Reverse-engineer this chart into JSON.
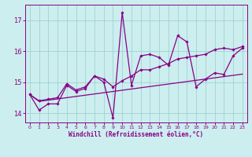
{
  "xlabel": "Windchill (Refroidissement éolien,°C)",
  "x_values": [
    0,
    1,
    2,
    3,
    4,
    5,
    6,
    7,
    8,
    9,
    10,
    11,
    12,
    13,
    14,
    15,
    16,
    17,
    18,
    19,
    20,
    21,
    22,
    23
  ],
  "main_line": [
    14.6,
    14.1,
    14.3,
    14.3,
    14.9,
    14.7,
    14.8,
    15.2,
    15.0,
    13.85,
    17.25,
    14.9,
    15.85,
    15.9,
    15.8,
    15.55,
    16.5,
    16.3,
    14.85,
    15.1,
    15.3,
    15.25,
    15.85,
    16.1
  ],
  "upper_line": [
    14.6,
    14.4,
    14.45,
    14.5,
    14.95,
    14.75,
    14.85,
    15.2,
    15.1,
    14.85,
    15.05,
    15.2,
    15.4,
    15.4,
    15.5,
    15.6,
    15.75,
    15.8,
    15.85,
    15.9,
    16.05,
    16.1,
    16.05,
    16.15
  ],
  "lower_line": [
    14.6,
    14.38,
    14.42,
    14.46,
    14.5,
    14.54,
    14.58,
    14.62,
    14.66,
    14.7,
    14.74,
    14.78,
    14.82,
    14.86,
    14.9,
    14.94,
    14.98,
    15.02,
    15.06,
    15.1,
    15.14,
    15.18,
    15.22,
    15.26
  ],
  "line_color": "#880088",
  "bg_color": "#cceeee",
  "grid_color": "#99cccc",
  "ylim": [
    13.7,
    17.5
  ],
  "yticks": [
    14,
    15,
    16,
    17
  ],
  "xticks": [
    0,
    1,
    2,
    3,
    4,
    5,
    6,
    7,
    8,
    9,
    10,
    11,
    12,
    13,
    14,
    15,
    16,
    17,
    18,
    19,
    20,
    21,
    22,
    23
  ],
  "figsize": [
    3.2,
    2.0
  ],
  "dpi": 100
}
